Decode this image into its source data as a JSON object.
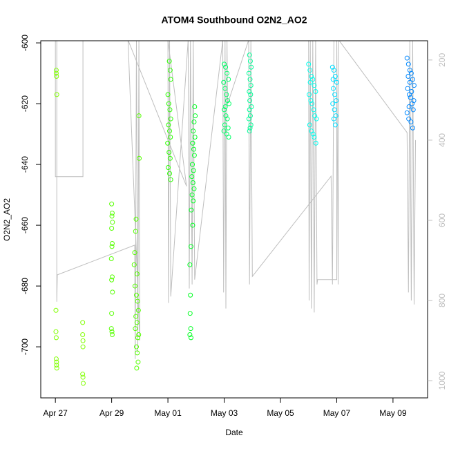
{
  "chart_data": {
    "type": "scatter",
    "title": "ATOM4 Southbound O2N2_AO2",
    "x_label": "Date",
    "y_label": "O2N2_AO2",
    "xlim": [
      -0.52,
      13.23
    ],
    "xticks": [
      {
        "value": 0,
        "label": "Apr 27"
      },
      {
        "value": 2,
        "label": "Apr 29"
      },
      {
        "value": 4,
        "label": "May 01"
      },
      {
        "value": 6,
        "label": "May 03"
      },
      {
        "value": 8,
        "label": "May 05"
      },
      {
        "value": 10,
        "label": "May 07"
      },
      {
        "value": 12,
        "label": "May 09"
      }
    ],
    "ylim": [
      -716.8,
      -599.3
    ],
    "yticks": [
      -700,
      -680,
      -660,
      -640,
      -620,
      -600
    ],
    "y2lim": [
      1043,
      152
    ],
    "y2ticks": [
      200,
      400,
      600,
      800,
      1000
    ],
    "y2_color": "#bebebe",
    "series": [
      {
        "color": "#bebebe",
        "axis": "y2",
        "style": "line",
        "x": [
          0,
          0,
          0.98,
          0.98,
          0.05,
          0.05,
          0.07,
          2.82,
          2.84,
          2.88,
          2.93,
          2.97,
          3.0,
          2.58,
          4.66,
          4.0,
          4.02,
          4.06,
          4.1,
          4.72,
          4.76,
          4.8,
          4.86,
          4.9,
          4.95,
          5.95,
          5.98,
          6.03,
          6.06,
          6.1,
          6.12,
          6.87,
          6.9,
          6.95,
          7.0,
          9.8,
          9.85,
          9.9,
          9.0,
          9.02,
          9.06,
          9.1,
          9.15,
          9.2,
          9.25,
          9.3,
          9.32,
          10.0,
          10.0,
          10.05,
          10.07,
          12.5,
          12.55,
          12.6,
          12.65,
          12.7,
          12.75,
          12.8
        ],
        "values": [
          150,
          491,
          491,
          150,
          150,
          803,
          736,
          662,
          946,
          150,
          930,
          150,
          900,
          150,
          515,
          150,
          806,
          150,
          790,
          150,
          770,
          150,
          760,
          150,
          748,
          150,
          780,
          150,
          820,
          150,
          310,
          150,
          760,
          150,
          740,
          490,
          760,
          150,
          150,
          800,
          150,
          820,
          150,
          830,
          150,
          760,
          748,
          748,
          150,
          760,
          150,
          381,
          780,
          150,
          800,
          150,
          810,
          400
        ]
      },
      {
        "color": "#80ff00",
        "x": [
          0.03,
          0.03,
          0.04,
          0.05,
          0.02,
          0.02,
          0.03,
          0.03,
          0.04,
          0.04,
          0.05,
          0.97,
          0.97,
          0.98,
          0.98,
          0.97,
          0.98,
          0.99
        ],
        "values": [
          -609,
          -610,
          -611,
          -617,
          -688,
          -695,
          -697,
          -704,
          -705,
          -706,
          -707,
          -692,
          -696,
          -698,
          -700,
          -709,
          -710,
          -712
        ]
      },
      {
        "color": "#55ff00",
        "x": [
          2.0,
          2.02,
          2.01,
          2.03,
          2.0,
          2.02,
          2.01,
          1.99,
          2.02,
          2.0,
          2.03,
          2.0,
          1.99,
          2.01,
          2.02,
          2.8,
          2.82,
          2.85,
          2.87,
          2.9,
          2.83,
          2.88,
          2.92,
          2.95,
          2.86,
          2.9,
          2.84,
          2.93,
          2.88,
          2.91,
          2.94,
          2.89,
          2.96,
          2.97,
          2.98
        ],
        "values": [
          -653,
          -656,
          -657,
          -659,
          -661,
          -666,
          -667,
          -671,
          -677,
          -678,
          -682,
          -689,
          -694,
          -695,
          -696,
          -673,
          -669,
          -662,
          -658,
          -676,
          -680,
          -683,
          -685,
          -688,
          -690,
          -692,
          -694,
          -697,
          -700,
          -702,
          -705,
          -707,
          -696,
          -624,
          -638
        ]
      },
      {
        "color": "#2bff00",
        "x": [
          4.05,
          4.08,
          4.1,
          4.0,
          4.03,
          4.07,
          4.1,
          4.02,
          4.06,
          4.09,
          3.99,
          4.04,
          4.08,
          4.01,
          4.06,
          4.1
        ],
        "values": [
          -606,
          -609,
          -612,
          -617,
          -620,
          -622,
          -625,
          -627,
          -629,
          -631,
          -633,
          -636,
          -638,
          -641,
          -643,
          -645
        ]
      },
      {
        "color": "#00ff22",
        "x": [
          4.95,
          4.97,
          4.93,
          4.9,
          4.96,
          4.88,
          4.92,
          4.94,
          4.87,
          4.91,
          4.85,
          4.89,
          4.93,
          4.86,
          4.9,
          4.83,
          4.88,
          4.82,
          4.78,
          4.8,
          4.79,
          4.81,
          4.78,
          4.82
        ],
        "values": [
          -621,
          -624,
          -626,
          -629,
          -631,
          -633,
          -635,
          -637,
          -640,
          -642,
          -644,
          -646,
          -648,
          -650,
          -652,
          -655,
          -660,
          -667,
          -673,
          -683,
          -689,
          -694,
          -696,
          -697
        ]
      },
      {
        "color": "#00ff66",
        "x": [
          6.0,
          6.05,
          6.1,
          6.15,
          5.98,
          6.03,
          6.08,
          6.12,
          6.17,
          6.0,
          6.06,
          6.11,
          6.02,
          6.14,
          5.99,
          6.09,
          6.16,
          6.04
        ],
        "values": [
          -607,
          -608,
          -610,
          -612,
          -613,
          -615,
          -617,
          -619,
          -620,
          -622,
          -624,
          -625,
          -627,
          -628,
          -629,
          -630,
          -631,
          -621
        ]
      },
      {
        "color": "#00ff99",
        "x": [
          6.9,
          6.93,
          6.96,
          6.88,
          6.92,
          6.95,
          6.89,
          6.94,
          6.91,
          6.97,
          6.9,
          6.93,
          6.88,
          6.95,
          6.92,
          6.9
        ],
        "values": [
          -604,
          -606,
          -608,
          -610,
          -612,
          -614,
          -616,
          -617,
          -619,
          -621,
          -622,
          -624,
          -625,
          -627,
          -628,
          -629
        ]
      },
      {
        "color": "#00ffee",
        "x": [
          9.0,
          9.05,
          9.1,
          9.15,
          9.2,
          9.25,
          9.02,
          9.08,
          9.12,
          9.18,
          9.22,
          9.28,
          9.04,
          9.1,
          9.16,
          9.2,
          9.26,
          9.06
        ],
        "values": [
          -607,
          -609,
          -611,
          -612,
          -614,
          -616,
          -617,
          -619,
          -620,
          -622,
          -624,
          -625,
          -627,
          -629,
          -630,
          -631,
          -633,
          -613
        ]
      },
      {
        "color": "#00ddff",
        "x": [
          9.85,
          9.9,
          9.95,
          10.0,
          9.88,
          9.93,
          9.98,
          9.86,
          9.92,
          9.97,
          9.9,
          9.95,
          9.87
        ],
        "values": [
          -608,
          -609,
          -611,
          -613,
          -615,
          -617,
          -619,
          -620,
          -622,
          -624,
          -625,
          -627,
          -612
        ]
      },
      {
        "color": "#0088ff",
        "x": [
          12.5,
          12.55,
          12.6,
          12.65,
          12.7,
          12.75,
          12.52,
          12.58,
          12.62,
          12.68,
          12.72,
          12.5,
          12.56,
          12.64,
          12.7,
          12.54,
          12.6,
          12.66,
          12.74,
          12.57
        ],
        "values": [
          -605,
          -607,
          -609,
          -610,
          -612,
          -614,
          -615,
          -617,
          -618,
          -620,
          -622,
          -623,
          -625,
          -626,
          -628,
          -611,
          -613,
          -616,
          -619,
          -621
        ]
      }
    ]
  }
}
